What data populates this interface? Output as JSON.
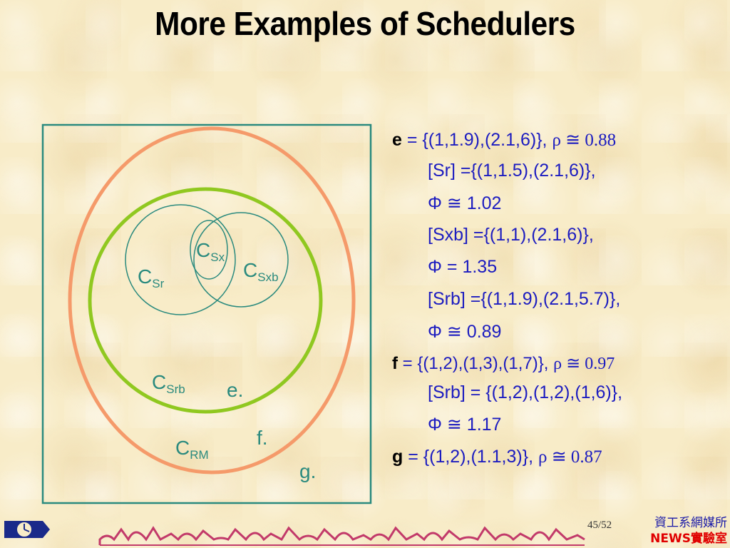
{
  "slide": {
    "title": "More Examples of Schedulers"
  },
  "diagram": {
    "labels": {
      "c_sx": {
        "base": "C",
        "sub": "Sx"
      },
      "c_sr": {
        "base": "C",
        "sub": "Sr"
      },
      "c_sxb": {
        "base": "C",
        "sub": "Sxb"
      },
      "c_srb": {
        "base": "C",
        "sub": "Srb"
      },
      "c_rm": {
        "base": "C",
        "sub": "RM"
      },
      "e": "e.",
      "f": "f.",
      "g": "g."
    },
    "colors": {
      "frame": "#2a8a7e",
      "outer_ellipse": "#f59a6a",
      "green_ellipse": "#90c820",
      "inner_circles": "#2a8a7e",
      "label": "#2a8a7e"
    }
  },
  "equations": {
    "e_line": {
      "lead": "e",
      "eq": " = ",
      "set": "{(1,1.9),(2.1,6)}, ",
      "rho": "ρ ≅ 0.88"
    },
    "e_sr": {
      "text": "[Sr] ={(1,1.5),(2.1,6)},"
    },
    "e_sr_phi": {
      "text": "Φ ≅ 1.02"
    },
    "e_sxb": {
      "text": "[Sxb] ={(1,1),(2.1,6)},"
    },
    "e_sxb_phi": {
      "text": "Φ = 1.35"
    },
    "e_srb": {
      "text": "[Srb] ={(1,1.9),(2.1,5.7)},"
    },
    "e_srb_phi": {
      "text": "Φ ≅ 0.89"
    },
    "f_line": {
      "lead": "f",
      "eq": " = ",
      "set": "{(1,2),(1,3),(1,7)}, ",
      "rho": "ρ ≅ 0.97"
    },
    "f_srb": {
      "text": "[Srb] = {(1,2),(1,2),(1,6)},"
    },
    "f_srb_phi": {
      "text": "Φ ≅ 1.17"
    },
    "g_line": {
      "lead": "g",
      "eq": " = ",
      "set": "{(1,2),(1.1,3)}, ",
      "rho": "ρ ≅ 0.87"
    }
  },
  "footer": {
    "page": "45",
    "total": "/52",
    "dept": "資工系網媒所",
    "lab_prefix": "NEWS",
    "lab_suffix": "實驗室",
    "logo_icon": "clock-logo-icon",
    "border_art": "ornamental-border-icon"
  }
}
